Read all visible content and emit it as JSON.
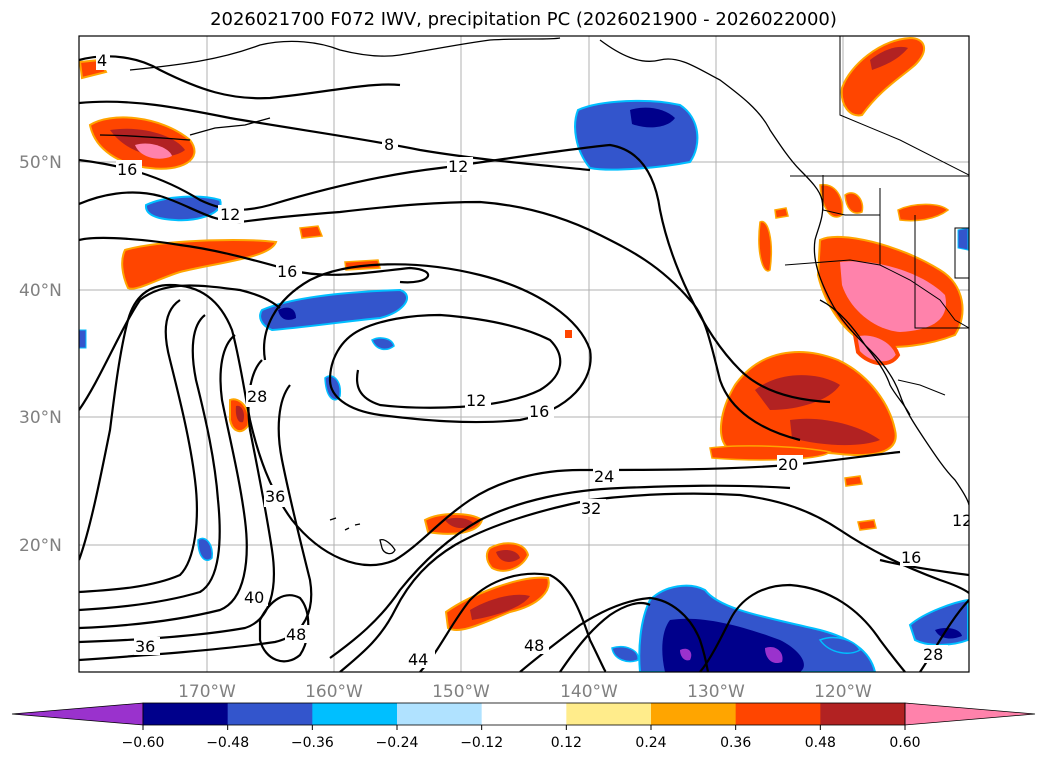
{
  "title": "2026021700 F072 IWV, precipitation PC (2026021900 - 2026022000)",
  "lat_labels": [
    "50°N",
    "40°N",
    "30°N",
    "20°N"
  ],
  "lon_labels": [
    "170°W",
    "160°W",
    "150°W",
    "140°W",
    "130°W",
    "120°W"
  ],
  "contour_labels": [
    "4",
    "8",
    "12",
    "12",
    "16",
    "16",
    "12",
    "16",
    "28",
    "36",
    "40",
    "48",
    "36",
    "44",
    "24",
    "32",
    "20",
    "48",
    "16",
    "28",
    "12"
  ],
  "colorbar": {
    "ticks": [
      "−0.60",
      "−0.48",
      "−0.36",
      "−0.24",
      "−0.12",
      "0.12",
      "0.24",
      "0.36",
      "0.48",
      "0.60"
    ],
    "colors": [
      "#9a32cd",
      "#00008b",
      "#3355cc",
      "#00bfff",
      "#b0e2ff",
      "#ffffff",
      "#ffec8b",
      "#ffa500",
      "#ff4500",
      "#b22222",
      "#ff82ab"
    ]
  }
}
